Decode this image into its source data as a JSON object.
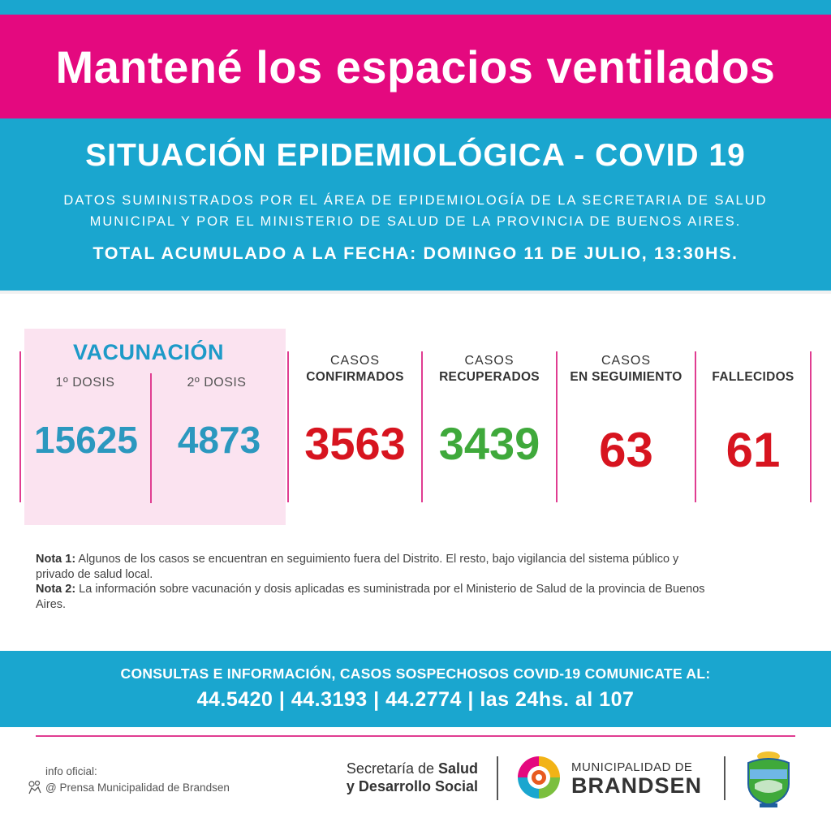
{
  "headline": "Mantené los espacios ventilados",
  "situation": {
    "title": "SITUACIÓN EPIDEMIOLÓGICA - COVID 19",
    "subtitle_line1": "DATOS SUMINISTRADOS POR EL ÁREA DE EPIDEMIOLOGÍA DE LA SECRETARIA DE SALUD",
    "subtitle_line2": "MUNICIPAL Y POR EL MINISTERIO DE SALUD DE LA PROVINCIA DE BUENOS AIRES.",
    "date_line": "TOTAL ACUMULADO A LA FECHA: DOMINGO 11 DE JULIO, 13:30HS."
  },
  "vaccination": {
    "title": "VACUNACIÓN",
    "dose1_label": "1º DOSIS",
    "dose1_value": "15625",
    "dose2_label": "2º DOSIS",
    "dose2_value": "4873"
  },
  "stats": {
    "confirmed": {
      "label_l1": "CASOS",
      "label_l2": "CONFIRMADOS",
      "value": "3563",
      "color": "#d7141f"
    },
    "recovered": {
      "label_l1": "CASOS",
      "label_l2": "RECUPERADOS",
      "value": "3439",
      "color": "#3fa93b"
    },
    "following": {
      "label_l1": "CASOS",
      "label_l2": "EN SEGUIMIENTO",
      "value": "63",
      "color": "#d7141f"
    },
    "deceased": {
      "label_l1": "",
      "label_l2": "FALLECIDOS",
      "value": "61",
      "color": "#d7141f"
    }
  },
  "notes": {
    "note1_label": "Nota 1:",
    "note1_text": " Algunos de los casos se encuentran en seguimiento fuera del Distrito. El resto, bajo vigilancia del sistema público y privado de salud local.",
    "note2_label": "Nota 2:",
    "note2_text": " La información sobre vacunación y dosis aplicadas es suministrada por el Ministerio de Salud de la provincia de Buenos Aires."
  },
  "contact": {
    "title": "CONSULTAS E INFORMACIÓN, CASOS SOSPECHOSOS COVID-19 COMUNICATE AL:",
    "phones": "44.5420 | 44.3193 | 44.2774 | las 24hs. al 107"
  },
  "footer": {
    "info_label": "info oficial:",
    "info_handle": "@ Prensa Municipalidad de Brandsen",
    "secretaria_prefix1": "Secretaría de ",
    "secretaria_bold1": "Salud",
    "secretaria_bold2": "y Desarrollo Social",
    "muni_line1": "MUNICIPALIDAD DE",
    "muni_line2": "BRANDSEN"
  },
  "colors": {
    "magenta": "#e4097f",
    "cyan": "#1aa6cf",
    "vac_blue": "#2b98bf",
    "pink_bg": "#fbe3f0"
  },
  "icons": [
    "facebook-style-icon",
    "muni-logo-icon",
    "coat-of-arms-icon"
  ]
}
